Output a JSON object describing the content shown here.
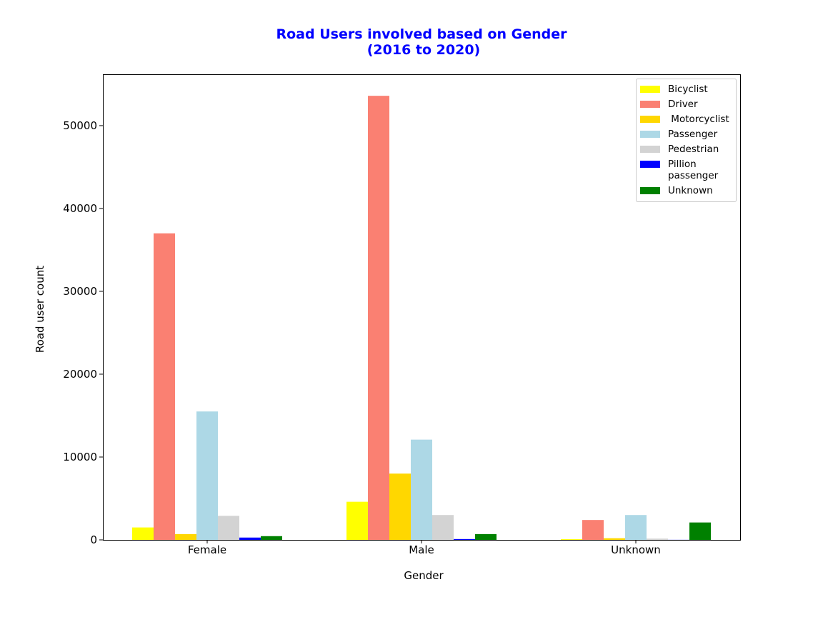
{
  "chart_data": {
    "type": "bar",
    "title_lines": [
      "Road Users involved based on Gender",
      "(2016 to 2020)"
    ],
    "xlabel": "Gender",
    "ylabel": "Road user count",
    "categories": [
      "Female",
      "Male",
      "Unknown"
    ],
    "yticks": [
      0,
      10000,
      20000,
      30000,
      40000,
      50000
    ],
    "ylim": [
      0,
      56200
    ],
    "grid": false,
    "legend_position": "top-right",
    "series": [
      {
        "name": "Bicyclist",
        "color": "#ffff00",
        "values": [
          1500,
          4600,
          80
        ]
      },
      {
        "name": "Driver",
        "color": "#fa8072",
        "values": [
          37000,
          53600,
          2400
        ]
      },
      {
        "name": " Motorcyclist",
        "color": "#ffd700",
        "values": [
          700,
          8000,
          200
        ]
      },
      {
        "name": "Passenger",
        "color": "#add8e6",
        "values": [
          15500,
          12100,
          3000
        ]
      },
      {
        "name": "Pedestrian",
        "color": "#d3d3d3",
        "values": [
          2900,
          3000,
          150
        ]
      },
      {
        "name": "Pillion\npassenger",
        "color": "#0000ff",
        "values": [
          280,
          100,
          10
        ]
      },
      {
        "name": "Unknown",
        "color": "#008000",
        "values": [
          450,
          700,
          2100
        ]
      }
    ]
  }
}
